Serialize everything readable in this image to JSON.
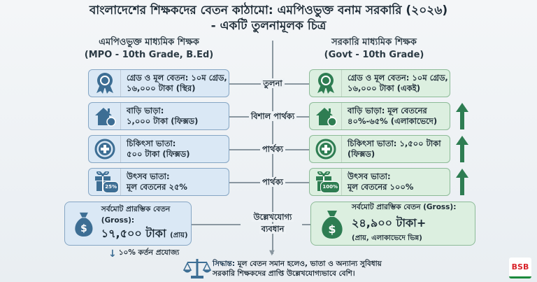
{
  "title": {
    "line1": "বাংলাদেশের শিক্ষকদের বেতন কাঠামো: এমপিওভুক্ত বনাম সরকারি (২০২৬)",
    "line2": "- একটি তুলনামূলক চিত্র"
  },
  "left_header": {
    "title": "এমপিওভুক্ত মাধ্যমিক শিক্ষক",
    "subtitle": "(MPO - 10th Grade, B.Ed)"
  },
  "right_header": {
    "title": "সরকারি মাধ্যমিক শিক্ষক",
    "subtitle": "(Govt - 10th Grade)"
  },
  "rows": [
    {
      "icon": "award-ribbon-icon",
      "left": [
        "গ্রেড ও মূল বেতন: ১০ম গ্রেড,",
        "১৬,০০০ টাকা (স্থির)"
      ],
      "middle": "তুলনা",
      "right": [
        "গ্রেড ও মূল বেতন: ১০ম গ্রেড,",
        "১৬,০০০ টাকা (একই)"
      ],
      "arrow": false
    },
    {
      "icon": "house-icon",
      "left": [
        "বাড়ি ভাড়া:",
        "১,০০০ টাকা (ফিক্সড)"
      ],
      "middle": "বিশাল পার্থক্য",
      "right": [
        "বাড়ি ভাড়া: মূল বেতনের",
        "৪০%-৬৫% (এলাকাভেদে)"
      ],
      "arrow": true
    },
    {
      "icon": "medical-plus-icon",
      "left": [
        "চিকিৎসা ভাতা:",
        "৫০০ টাকা (ফিক্সড)"
      ],
      "middle": "পার্থক্য",
      "right": [
        "চিকিৎসা ভাতা: ১,৫০০ টাকা",
        "(ফিক্সড)"
      ],
      "arrow": true
    },
    {
      "icon": "gift-icon",
      "left": [
        "উৎসব ভাতা:",
        "মূল বেতনের ২৫%"
      ],
      "middle": "পার্থক্য",
      "right": [
        "উৎসব ভাতা:",
        "মূল বেতনের ১০০%"
      ],
      "arrow": true,
      "left_badge": "25%",
      "right_badge": "100%"
    }
  ],
  "total": {
    "left": {
      "label": "সর্বমোট প্রারম্ভিক বেতন (Gross):",
      "amount": "১৭,৫০০ টাকা",
      "note": "(প্রায়)"
    },
    "middle": [
      "উল্লেখযোগ্য",
      "ব্যবধান"
    ],
    "right": {
      "label": "সর্বমোট প্রারম্ভিক বেতন (Gross):",
      "amount": "২৪,৯০০ টাকা+",
      "note": "(প্রায়, এলাকাভেদে ভিন্ন)"
    }
  },
  "deduction": "১০% কর্তন প্রযোজ্য",
  "conclusion": {
    "bold": "সিদ্ধান্ত:",
    "line1": " মূল বেতন সমান হলেও, ভাতা ও অন্যান্য সুবিধায়",
    "line2": "সরকারি শিক্ষকদের প্রাপ্তি উল্লেখযোগ্যভাবে বেশি।"
  },
  "logo": "BSB",
  "colors": {
    "blue": "#3d6e94",
    "green": "#2e7d52",
    "blue_box": "#dae8f5",
    "green_box": "#dcefe0"
  }
}
